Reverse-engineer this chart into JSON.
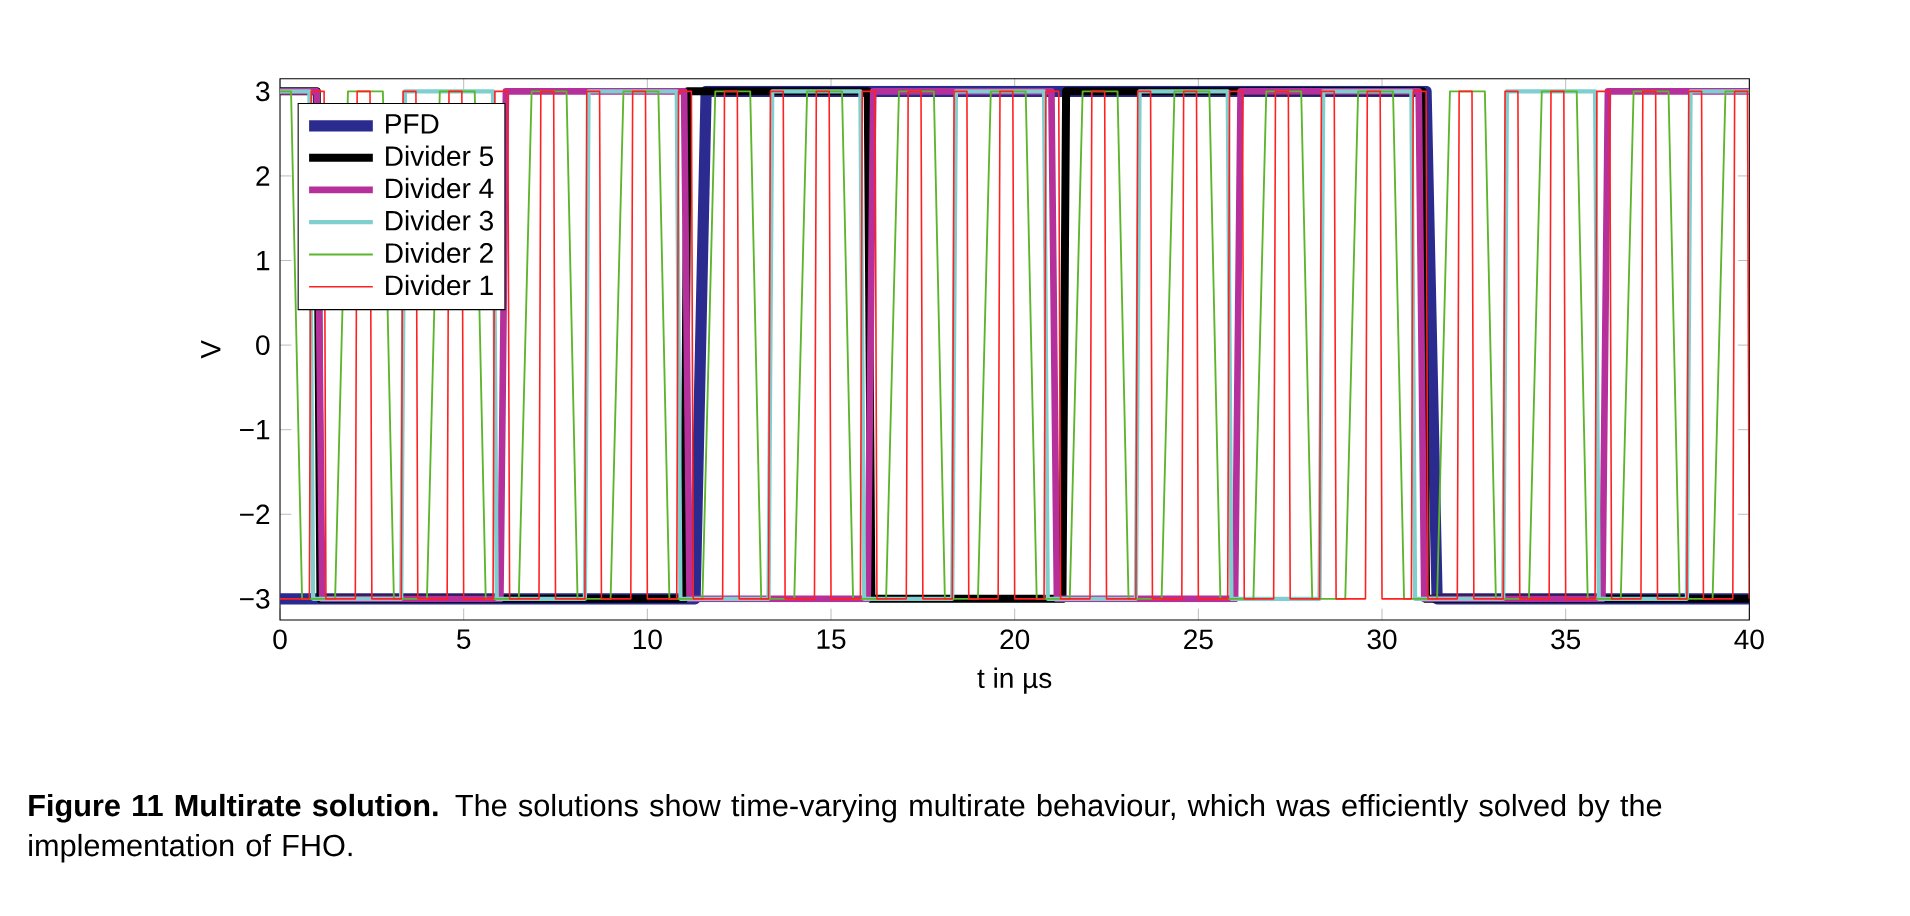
{
  "chart_data": {
    "type": "line",
    "xlabel": "t in µs",
    "ylabel": "V",
    "xlim": [
      0,
      40
    ],
    "ylim": [
      -3.25,
      3.15
    ],
    "xticks": [
      0,
      5,
      10,
      15,
      20,
      25,
      30,
      35,
      40
    ],
    "yticks": [
      {
        "value": -3,
        "label": "−3"
      },
      {
        "value": -2,
        "label": "−2"
      },
      {
        "value": -1,
        "label": "−1"
      },
      0,
      1,
      2,
      3
    ],
    "grid": false,
    "legend": "top left",
    "marker": "none",
    "line_style": "solid",
    "annotations": [
      "**Figure 11  Multirate solution.** The solutions show time-varying multirate behaviour, which was efficiently solved by the implementation of FHO."
    ],
    "series": [
      {
        "name": "PFD",
        "color": "#2b2b8f",
        "x": [
          0,
          11.3,
          11.6,
          31.2,
          31.5,
          40
        ],
        "values": [
          -3,
          -3,
          3,
          3,
          -3,
          -3
        ]
      },
      {
        "name": "Divider 5",
        "color": "#000000",
        "x": [
          0,
          1.0,
          1.1,
          11.0,
          11.1,
          16.0,
          16.1,
          21.3,
          21.4,
          31.1,
          31.2,
          40
        ],
        "values": [
          3,
          3,
          -3,
          -3,
          3,
          3,
          -3,
          -3,
          3,
          3,
          -3,
          -3
        ]
      },
      {
        "name": "Divider 4",
        "color": "#b5309a",
        "x": [
          0,
          1,
          1.15,
          6,
          6.15,
          11,
          11.15,
          16,
          16.15,
          21,
          21.15,
          26,
          26.15,
          31,
          31.15,
          36,
          36.15,
          40
        ],
        "values": [
          3,
          3,
          -3,
          -3,
          3,
          3,
          -3,
          -3,
          3,
          3,
          -3,
          -3,
          3,
          3,
          -3,
          -3,
          3,
          3
        ]
      },
      {
        "name": "Divider 3",
        "color": "#7fcfcf",
        "x": [
          0,
          0.8,
          0.9,
          3.3,
          3.4,
          5.8,
          5.9,
          8.3,
          8.4,
          10.8,
          10.9,
          13.3,
          13.4,
          15.8,
          15.9,
          18.3,
          18.4,
          20.8,
          20.9,
          23.3,
          23.4,
          25.8,
          25.9,
          28.3,
          28.4,
          30.8,
          30.9,
          33.3,
          33.4,
          35.8,
          35.9,
          38.3,
          38.4,
          40
        ],
        "values": [
          3,
          3,
          -3,
          -3,
          3,
          3,
          -3,
          -3,
          3,
          3,
          -3,
          -3,
          3,
          3,
          -3,
          -3,
          3,
          3,
          -3,
          -3,
          3,
          3,
          -3,
          -3,
          3,
          3,
          -3,
          -3,
          3,
          3,
          -3,
          -3,
          3,
          3
        ]
      },
      {
        "name": "Divider 2",
        "color": "#5db52b",
        "x": [
          0,
          0.3,
          0.6,
          1.5,
          1.85,
          2.8,
          3.1,
          4,
          4.35,
          5.3,
          5.6,
          6.5,
          6.85,
          7.8,
          8.1,
          9,
          9.35,
          10.3,
          10.6,
          11.5,
          11.85,
          12.8,
          13.1,
          14,
          14.35,
          15.3,
          15.6,
          16.5,
          16.85,
          17.8,
          18.1,
          19,
          19.35,
          20.3,
          20.6,
          21.5,
          21.85,
          22.8,
          23.1,
          24,
          24.35,
          25.3,
          25.6,
          26.5,
          26.85,
          27.8,
          28.1,
          29,
          29.35,
          30.3,
          30.6,
          31.5,
          31.85,
          32.8,
          33.1,
          34,
          34.35,
          35.3,
          35.6,
          36.5,
          36.85,
          37.8,
          38.1,
          39,
          39.35,
          40
        ],
        "values": [
          3,
          3,
          -3,
          -3,
          3,
          3,
          -3,
          -3,
          3,
          3,
          -3,
          -3,
          3,
          3,
          -3,
          -3,
          3,
          3,
          -3,
          -3,
          3,
          3,
          -3,
          -3,
          3,
          3,
          -3,
          -3,
          3,
          3,
          -3,
          -3,
          3,
          3,
          -3,
          -3,
          3,
          3,
          -3,
          -3,
          3,
          3,
          -3,
          -3,
          3,
          3,
          -3,
          -3,
          3,
          3,
          -3,
          -3,
          3,
          3,
          -3,
          -3,
          3,
          3,
          -3,
          -3,
          3,
          3,
          -3,
          -3,
          3,
          3
        ]
      },
      {
        "name": "Divider 1",
        "color": "#ff2020",
        "x": [
          0,
          0.8,
          0.85,
          1.2,
          1.25,
          2.05,
          2.1,
          2.45,
          2.5,
          3.3,
          3.35,
          3.7,
          3.75,
          4.55,
          4.6,
          4.95,
          5.0,
          5.8,
          5.85,
          6.2,
          6.25,
          7.05,
          7.1,
          7.45,
          7.5,
          8.3,
          8.35,
          8.7,
          8.75,
          9.55,
          9.6,
          9.95,
          10.0,
          10.8,
          10.85,
          11.2,
          11.25,
          12.05,
          12.1,
          12.45,
          12.5,
          13.3,
          13.35,
          13.7,
          13.75,
          14.55,
          14.6,
          14.95,
          15.0,
          15.8,
          15.85,
          16.2,
          16.25,
          17.05,
          17.1,
          17.45,
          17.5,
          18.3,
          18.35,
          18.7,
          18.75,
          19.55,
          19.6,
          19.95,
          20.0,
          20.8,
          20.85,
          21.2,
          21.25,
          22.05,
          22.1,
          22.45,
          22.5,
          23.3,
          23.35,
          23.7,
          23.75,
          24.55,
          24.6,
          24.95,
          25.0,
          25.8,
          25.85,
          26.2,
          26.25,
          27.05,
          27.1,
          27.45,
          27.5,
          28.3,
          28.35,
          28.7,
          28.75,
          29.55,
          29.6,
          29.95,
          30.0,
          30.8,
          30.85,
          31.2,
          31.25,
          32.05,
          32.1,
          32.45,
          32.5,
          33.3,
          33.35,
          33.7,
          33.75,
          34.55,
          34.6,
          34.95,
          35.0,
          35.8,
          35.85,
          36.2,
          36.25,
          37.05,
          37.1,
          37.45,
          37.5,
          38.3,
          38.35,
          38.7,
          38.75,
          39.55,
          39.6,
          39.95,
          40.0
        ],
        "values": [
          -3,
          -3,
          3,
          3,
          -3,
          -3,
          3,
          3,
          -3,
          -3,
          3,
          3,
          -3,
          -3,
          3,
          3,
          -3,
          -3,
          3,
          3,
          -3,
          -3,
          3,
          3,
          -3,
          -3,
          3,
          3,
          -3,
          -3,
          3,
          3,
          -3,
          -3,
          3,
          3,
          -3,
          -3,
          3,
          3,
          -3,
          -3,
          3,
          3,
          -3,
          -3,
          3,
          3,
          -3,
          -3,
          3,
          3,
          -3,
          -3,
          3,
          3,
          -3,
          -3,
          3,
          3,
          -3,
          -3,
          3,
          3,
          -3,
          -3,
          3,
          3,
          -3,
          -3,
          3,
          3,
          -3,
          -3,
          3,
          3,
          -3,
          -3,
          3,
          3,
          -3,
          -3,
          3,
          3,
          -3,
          -3,
          3,
          3,
          -3,
          -3,
          3,
          3,
          -3,
          -3,
          3,
          3,
          -3,
          -3,
          3,
          3,
          -3,
          -3,
          3,
          3,
          -3,
          -3,
          3,
          3,
          -3,
          -3,
          3,
          3,
          -3,
          -3,
          3,
          3,
          -3,
          -3,
          3,
          3,
          -3,
          -3,
          3,
          3,
          -3,
          -3,
          3,
          3,
          -3
        ]
      }
    ]
  }
}
